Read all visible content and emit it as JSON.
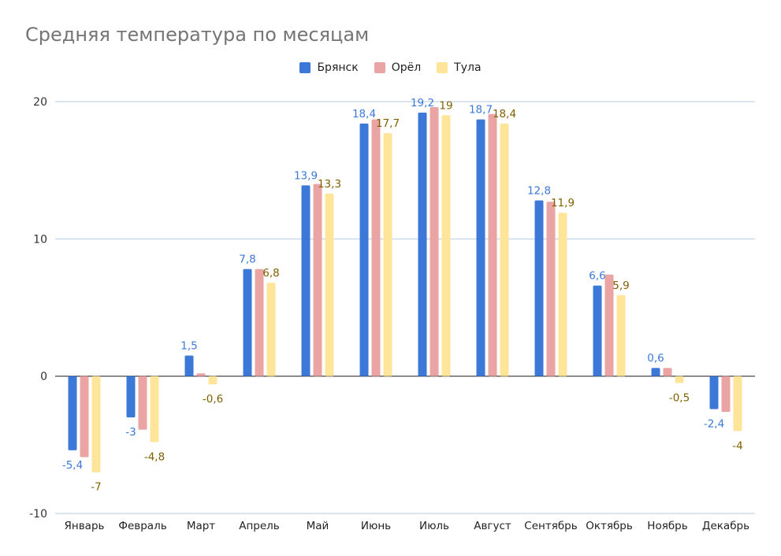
{
  "chart_data": {
    "type": "bar",
    "title": "Средняя температура по месяцам",
    "xlabel": "",
    "ylabel": "",
    "ylim": [
      -10,
      20
    ],
    "yticks": [
      -10,
      0,
      10,
      20
    ],
    "grid": true,
    "legend_position": "top",
    "categories": [
      "Январь",
      "Февраль",
      "Март",
      "Апрель",
      "Май",
      "Июнь",
      "Июль",
      "Август",
      "Сентябрь",
      "Октябрь",
      "Ноябрь",
      "Декабрь"
    ],
    "series": [
      {
        "name": "Брянск",
        "color": "#3c78d8",
        "label_color": "#3c78d8",
        "values": [
          -5.4,
          -3,
          1.5,
          7.8,
          13.9,
          18.4,
          19.2,
          18.7,
          12.8,
          6.6,
          0.6,
          -2.4
        ],
        "labels": [
          "-5,4",
          "-3",
          "1,5",
          "7,8",
          "13,9",
          "18,4",
          "19,2",
          "18,7",
          "12,8",
          "6,6",
          "0,6",
          "-2,4"
        ]
      },
      {
        "name": "Орёл",
        "color": "#eaa4a4",
        "label_color": "#eaa4a4",
        "values": [
          -5.9,
          -3.9,
          0.2,
          7.8,
          14.0,
          18.7,
          19.6,
          19.1,
          12.7,
          7.4,
          0.6,
          -2.6
        ],
        "labels": [
          "",
          "",
          "",
          "",
          "",
          "",
          "",
          "",
          "",
          "",
          "",
          ""
        ]
      },
      {
        "name": "Тула",
        "color": "#ffe599",
        "label_color": "#7f6000",
        "values": [
          -7,
          -4.8,
          -0.6,
          6.8,
          13.3,
          17.7,
          19,
          18.4,
          11.9,
          5.9,
          -0.5,
          -4
        ],
        "labels": [
          "-7",
          "-4,8",
          "-0,6",
          "6,8",
          "13,3",
          "17,7",
          "19",
          "18,4",
          "11,9",
          "5,9",
          "-0,5",
          "-4"
        ]
      }
    ]
  }
}
